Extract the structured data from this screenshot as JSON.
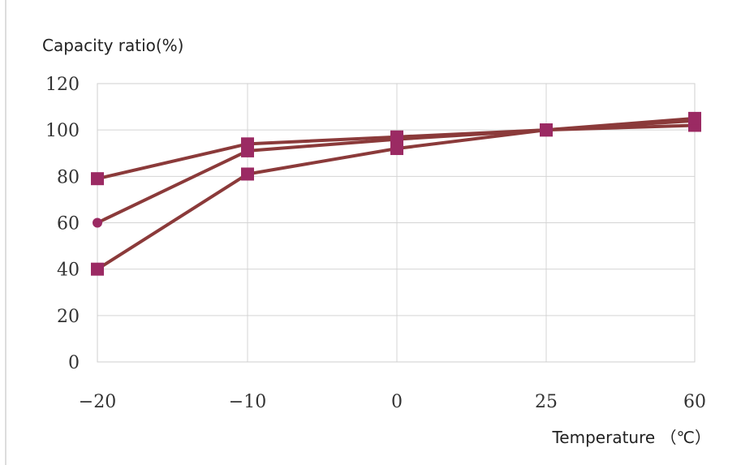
{
  "chart_data": {
    "type": "line",
    "ylabel": "Capacity ratio(%)",
    "xlabel": "Temperature （℃）",
    "categories": [
      "−20",
      "−10",
      "0",
      "25",
      "60"
    ],
    "y_ticks": [
      "0",
      "20",
      "40",
      "60",
      "80",
      "100",
      "120"
    ],
    "ylim": [
      0,
      120
    ],
    "grid": true,
    "legend": "none",
    "series": [
      {
        "values": [
          79,
          94,
          97,
          100,
          102
        ],
        "marker": "square"
      },
      {
        "values": [
          60,
          91,
          96,
          100,
          104
        ],
        "marker": "circle"
      },
      {
        "values": [
          40,
          81,
          92,
          100,
          105
        ],
        "marker": "square"
      }
    ],
    "colors": {
      "line": "#8b3a3a",
      "marker": "#9b2a63"
    }
  }
}
